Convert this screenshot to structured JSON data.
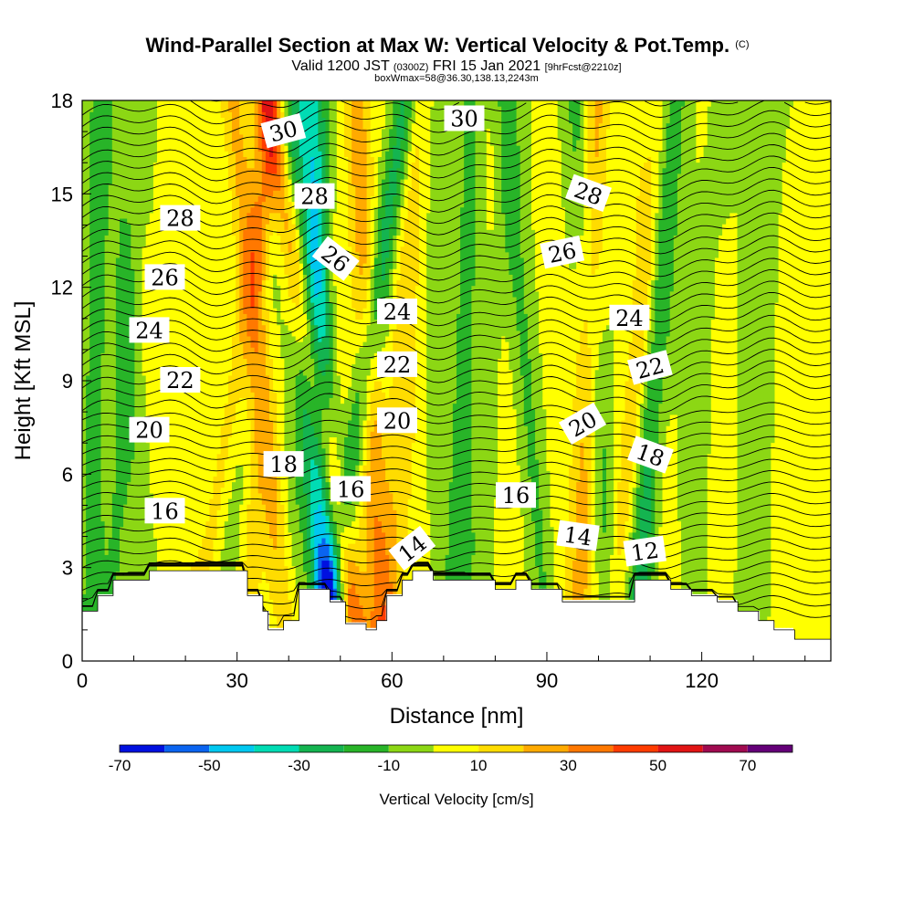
{
  "header": {
    "title_main": "Wind-Parallel Section at Max W: Vertical Velocity & Pot.Temp.",
    "title_copyright": "(C)",
    "valid_prefix": "Valid 1200 JST",
    "valid_utc": "(0300Z)",
    "valid_date": "FRI 15 Jan 2021",
    "forecast_tag": "[9hrFcst@2210z]",
    "box_info": "boxWmax=58@36.30,138.13,2243m"
  },
  "chart_data": {
    "type": "heatmap",
    "xlabel": "Distance [nm]",
    "ylabel": "Height [Kft MSL]",
    "xlim": [
      0,
      145
    ],
    "ylim": [
      0,
      18
    ],
    "x_ticks": [
      0,
      30,
      60,
      90,
      120
    ],
    "x_tick_labels": [
      "0",
      "30",
      "60",
      "90",
      "120"
    ],
    "y_ticks": [
      0,
      3,
      6,
      9,
      12,
      15,
      18
    ],
    "y_tick_labels": [
      "0",
      "3",
      "6",
      "9",
      "12",
      "15",
      "18"
    ],
    "colorbar": {
      "title": "Vertical Velocity [cm/s]",
      "bounds": [
        -70,
        -60,
        -50,
        -40,
        -30,
        -20,
        -10,
        0,
        10,
        20,
        30,
        40,
        50,
        60,
        70,
        80
      ],
      "tick_values": [
        -70,
        -50,
        -30,
        -10,
        10,
        30,
        50,
        70
      ],
      "tick_labels": [
        "-70",
        "-50",
        "-30",
        "-10",
        "10",
        "30",
        "50",
        "70"
      ],
      "colors": [
        "#0010e0",
        "#0a64f0",
        "#00c8f0",
        "#00dcb4",
        "#14b450",
        "#28b428",
        "#8cd714",
        "#ffff00",
        "#ffdc00",
        "#ffaa00",
        "#ff7800",
        "#ff3c00",
        "#e11414",
        "#a00a50",
        "#640078"
      ]
    },
    "terrain": [
      [
        0,
        1.6
      ],
      [
        3,
        1.6
      ],
      [
        3,
        2.1
      ],
      [
        6,
        2.1
      ],
      [
        6,
        2.6
      ],
      [
        13,
        2.6
      ],
      [
        13,
        2.9
      ],
      [
        32,
        2.9
      ],
      [
        32,
        2.1
      ],
      [
        35,
        2.1
      ],
      [
        35,
        1.6
      ],
      [
        36,
        1.6
      ],
      [
        36,
        1.0
      ],
      [
        39,
        1.0
      ],
      [
        39,
        1.3
      ],
      [
        42,
        1.3
      ],
      [
        42,
        2.3
      ],
      [
        48,
        2.3
      ],
      [
        48,
        1.9
      ],
      [
        51,
        1.9
      ],
      [
        51,
        1.2
      ],
      [
        55,
        1.2
      ],
      [
        55,
        1.0
      ],
      [
        57,
        1.0
      ],
      [
        57,
        1.3
      ],
      [
        59,
        1.3
      ],
      [
        59,
        2.1
      ],
      [
        62,
        2.1
      ],
      [
        62,
        2.6
      ],
      [
        64,
        2.6
      ],
      [
        64,
        2.9
      ],
      [
        68,
        2.9
      ],
      [
        68,
        2.6
      ],
      [
        80,
        2.6
      ],
      [
        80,
        2.3
      ],
      [
        84,
        2.3
      ],
      [
        84,
        2.6
      ],
      [
        87,
        2.6
      ],
      [
        87,
        2.3
      ],
      [
        93,
        2.3
      ],
      [
        93,
        1.9
      ],
      [
        107,
        1.9
      ],
      [
        107,
        2.6
      ],
      [
        114,
        2.6
      ],
      [
        114,
        2.3
      ],
      [
        118,
        2.3
      ],
      [
        118,
        2.1
      ],
      [
        123,
        2.1
      ],
      [
        123,
        1.9
      ],
      [
        127,
        1.9
      ],
      [
        127,
        1.6
      ],
      [
        131,
        1.6
      ],
      [
        131,
        1.3
      ],
      [
        134,
        1.3
      ],
      [
        134,
        1.0
      ],
      [
        138,
        1.0
      ],
      [
        138,
        0.7
      ],
      [
        145,
        0.7
      ]
    ],
    "w_columns": [
      [
        2,
        -13,
        0.1
      ],
      [
        7,
        -10,
        0.3
      ],
      [
        11,
        -6,
        -0.4
      ],
      [
        16,
        5,
        -0.6
      ],
      [
        20,
        7,
        -0.2
      ],
      [
        26,
        12,
        0.9
      ],
      [
        30,
        -8,
        0.9
      ],
      [
        33,
        14,
        0.2
      ],
      [
        37,
        22,
        -0.6
      ],
      [
        41,
        -7,
        0.5
      ],
      [
        45,
        -18,
        -0.4
      ],
      [
        47,
        -40,
        -0.2
      ],
      [
        49,
        38,
        -1.0
      ],
      [
        51,
        -28,
        0.9
      ],
      [
        54,
        8,
        -0.7
      ],
      [
        57,
        26,
        -0.3
      ],
      [
        61,
        16,
        0.3
      ],
      [
        65,
        4,
        -0.5
      ],
      [
        69,
        -4,
        -0.1
      ],
      [
        73,
        -13,
        0.2
      ],
      [
        77,
        -7,
        0.5
      ],
      [
        83,
        6,
        -0.3
      ],
      [
        88,
        -12,
        -0.5
      ],
      [
        92,
        5,
        -0.2
      ],
      [
        97,
        24,
        0.2
      ],
      [
        101,
        -15,
        -0.4
      ],
      [
        105,
        18,
        0.6
      ],
      [
        109,
        -26,
        0.4
      ],
      [
        113,
        7,
        -0.5
      ],
      [
        118,
        -6,
        0.4
      ],
      [
        124,
        4,
        -0.2
      ],
      [
        130,
        -7,
        0.3
      ],
      [
        136,
        3,
        -0.1
      ],
      [
        142,
        2,
        0
      ]
    ],
    "theta_contours": [
      {
        "value": 12,
        "label": "12",
        "label_x": 109,
        "label_y": 3.5,
        "label_angle": -8
      },
      {
        "value": 14,
        "label": "14",
        "label_x": 96,
        "label_y": 4.0,
        "label_angle": 8
      },
      {
        "value": 14,
        "label": "14",
        "label_x": 64,
        "label_y": 3.6,
        "label_angle": -38
      },
      {
        "value": 16,
        "label": "16",
        "label_x": 16,
        "label_y": 4.8,
        "label_angle": 0
      },
      {
        "value": 16,
        "label": "16",
        "label_x": 52,
        "label_y": 5.5,
        "label_angle": 0
      },
      {
        "value": 16,
        "label": "16",
        "label_x": 84,
        "label_y": 5.3,
        "label_angle": 0
      },
      {
        "value": 18,
        "label": "18",
        "label_x": 39,
        "label_y": 6.3,
        "label_angle": 0
      },
      {
        "value": 18,
        "label": "18",
        "label_x": 110,
        "label_y": 6.6,
        "label_angle": 20
      },
      {
        "value": 20,
        "label": "20",
        "label_x": 13,
        "label_y": 7.4,
        "label_angle": 0
      },
      {
        "value": 20,
        "label": "20",
        "label_x": 61,
        "label_y": 7.7,
        "label_angle": 0
      },
      {
        "value": 20,
        "label": "20",
        "label_x": 97,
        "label_y": 7.6,
        "label_angle": -30
      },
      {
        "value": 22,
        "label": "22",
        "label_x": 19,
        "label_y": 9.0,
        "label_angle": 0
      },
      {
        "value": 22,
        "label": "22",
        "label_x": 61,
        "label_y": 9.5,
        "label_angle": 0
      },
      {
        "value": 22,
        "label": "22",
        "label_x": 110,
        "label_y": 9.4,
        "label_angle": -15
      },
      {
        "value": 24,
        "label": "24",
        "label_x": 13,
        "label_y": 10.6,
        "label_angle": 0
      },
      {
        "value": 24,
        "label": "24",
        "label_x": 61,
        "label_y": 11.2,
        "label_angle": 0
      },
      {
        "value": 24,
        "label": "24",
        "label_x": 106,
        "label_y": 11.0,
        "label_angle": 0
      },
      {
        "value": 26,
        "label": "26",
        "label_x": 16,
        "label_y": 12.3,
        "label_angle": 0
      },
      {
        "value": 26,
        "label": "26",
        "label_x": 49,
        "label_y": 12.9,
        "label_angle": 38
      },
      {
        "value": 26,
        "label": "26",
        "label_x": 93,
        "label_y": 13.1,
        "label_angle": -12
      },
      {
        "value": 28,
        "label": "28",
        "label_x": 19,
        "label_y": 14.2,
        "label_angle": 0
      },
      {
        "value": 28,
        "label": "28",
        "label_x": 45,
        "label_y": 14.9,
        "label_angle": 0
      },
      {
        "value": 28,
        "label": "28",
        "label_x": 98,
        "label_y": 15.0,
        "label_angle": 20
      },
      {
        "value": 30,
        "label": "30",
        "label_x": 39,
        "label_y": 17.0,
        "label_angle": -15
      },
      {
        "value": 30,
        "label": "30",
        "label_x": 74,
        "label_y": 17.4,
        "label_angle": 0
      }
    ]
  }
}
